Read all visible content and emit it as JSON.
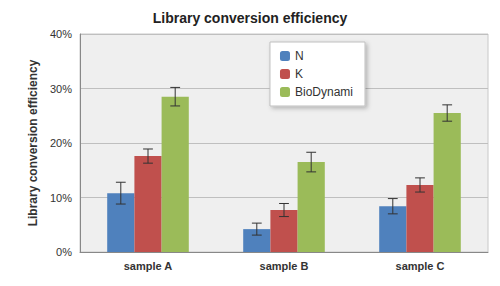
{
  "chart_data": {
    "type": "bar",
    "title": "Library conversion efficiency",
    "y_label": "Library conversion efficiency",
    "categories": [
      "sample A",
      "sample B",
      "sample C"
    ],
    "series": [
      {
        "name": "N",
        "color": "#4f81bd",
        "values": [
          10.8,
          4.2,
          8.4
        ],
        "errors": [
          2.0,
          1.1,
          1.4
        ]
      },
      {
        "name": "K",
        "color": "#c0504d",
        "values": [
          17.6,
          7.7,
          12.3
        ],
        "errors": [
          1.3,
          1.2,
          1.3
        ]
      },
      {
        "name": "BioDynami",
        "color": "#9bbb59",
        "values": [
          28.5,
          16.5,
          25.5
        ],
        "errors": [
          1.7,
          1.8,
          1.5
        ]
      }
    ],
    "ylim": [
      0,
      40
    ],
    "yticks": [
      {
        "value": 0,
        "label": "0%"
      },
      {
        "value": 10,
        "label": "10%"
      },
      {
        "value": 20,
        "label": "20%"
      },
      {
        "value": 30,
        "label": "30%"
      },
      {
        "value": 40,
        "label": "40%"
      }
    ],
    "grid": true,
    "legend": "upper right"
  }
}
